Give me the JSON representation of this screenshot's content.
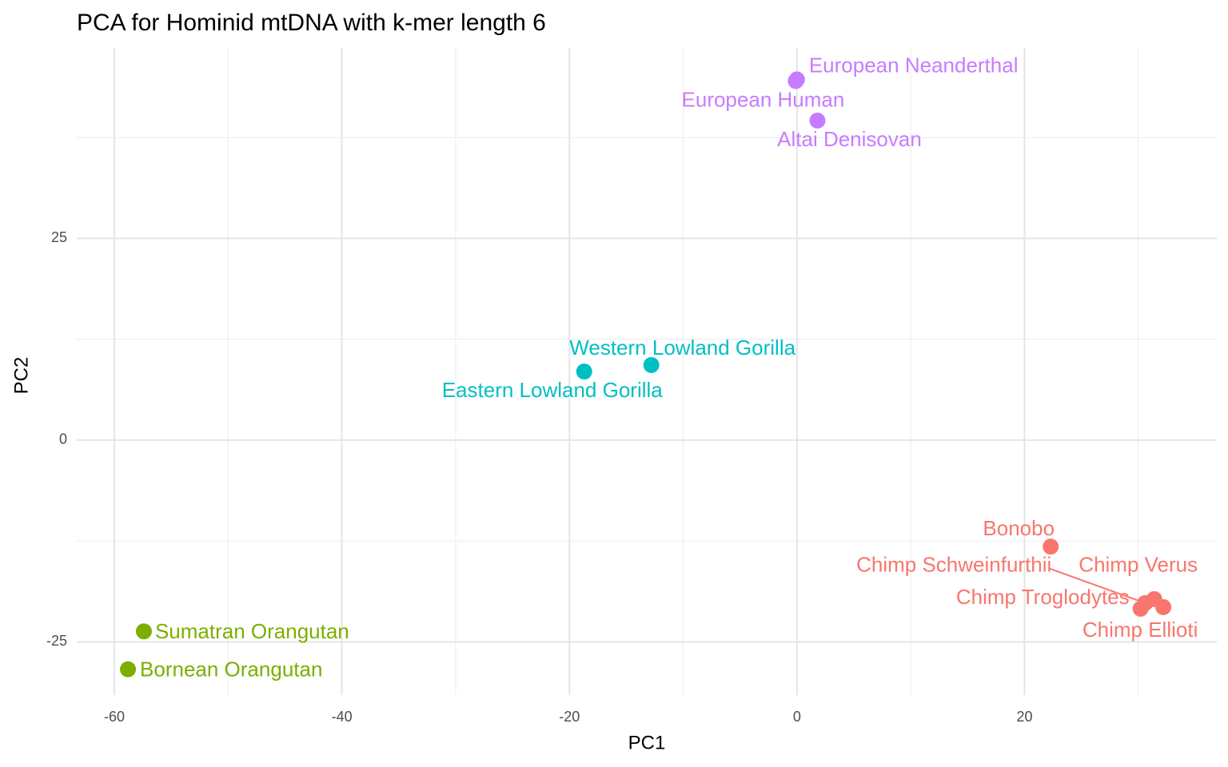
{
  "chart_data": {
    "type": "scatter",
    "title": "PCA for Hominid mtDNA with k-mer length 6",
    "x_label": "PC1",
    "y_label": "PC2",
    "xlim": [
      -63.3,
      36.9
    ],
    "ylim": [
      -31.6,
      48.6
    ],
    "xticks": [
      -60,
      -40,
      -20,
      0,
      20
    ],
    "yticks": [
      -25,
      0,
      25
    ],
    "grid": true,
    "series": [
      {
        "color": "#f8766d",
        "x": [
          22.3,
          31.4,
          30.6,
          30.2,
          32.2
        ],
        "y": [
          -13.2,
          -19.7,
          -20.2,
          -20.9,
          -20.7
        ],
        "labels": [
          "Bonobo",
          "Chimp Verus",
          "Chimp Schweinfurthii",
          "Chimp Troglodytes",
          "Chimp Ellioti"
        ]
      },
      {
        "color": "#7cae00",
        "x": [
          -57.4,
          -58.8
        ],
        "y": [
          -23.7,
          -28.4
        ],
        "labels": [
          "Sumatran Orangutan",
          "Bornean Orangutan"
        ]
      },
      {
        "color": "#00bfc4",
        "x": [
          -12.8,
          -18.7
        ],
        "y": [
          9.3,
          8.5
        ],
        "labels": [
          "Western Lowland Gorilla",
          "Eastern Lowland Gorilla"
        ]
      },
      {
        "color": "#c77cff",
        "x": [
          0.0,
          -0.1,
          1.8
        ],
        "y": [
          44.7,
          44.5,
          39.6
        ],
        "labels": [
          "European Neanderthal",
          "European Human",
          "Altai Denisovan"
        ]
      }
    ]
  }
}
